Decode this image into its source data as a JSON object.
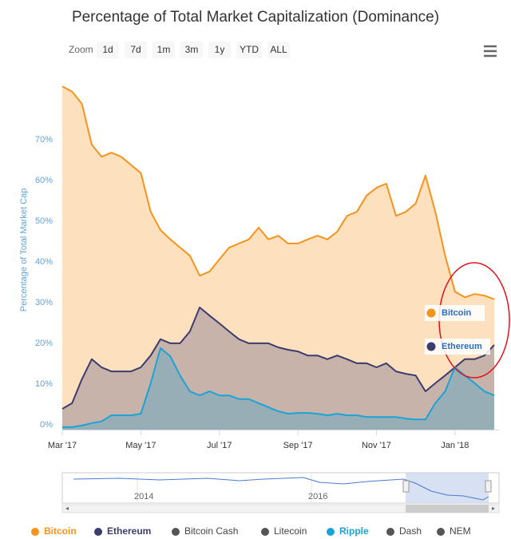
{
  "chart_data": {
    "type": "area",
    "title": "Percentage of Total Market Capitalization (Dominance)",
    "zoom_label": "Zoom",
    "zoom_buttons": [
      "1d",
      "7d",
      "1m",
      "3m",
      "1y",
      "YTD",
      "ALL"
    ],
    "y_label": "Percentage of Total Market Cap",
    "categories": [
      "Mar '17",
      null,
      null,
      null,
      null,
      null,
      null,
      null,
      "May '17",
      null,
      null,
      null,
      null,
      null,
      null,
      null,
      "Jul '17",
      null,
      null,
      null,
      null,
      null,
      null,
      null,
      "Sep '17",
      null,
      null,
      null,
      null,
      null,
      null,
      null,
      "Nov '17",
      null,
      null,
      null,
      null,
      null,
      null,
      null,
      "Jan '18",
      null,
      null,
      null,
      null
    ],
    "ylim": [
      0,
      85
    ],
    "yticks": [
      {
        "value": 0,
        "label": "0%"
      },
      {
        "value": 10,
        "label": "10%"
      },
      {
        "value": 20,
        "label": "20%"
      },
      {
        "value": 30,
        "label": "30%"
      },
      {
        "value": 40,
        "label": "40%"
      },
      {
        "value": 50,
        "label": "50%"
      },
      {
        "value": 60,
        "label": "60%"
      },
      {
        "value": 70,
        "label": "70%"
      }
    ],
    "grid": false,
    "series": [
      {
        "name": "Bitcoin",
        "color": "#f7931a",
        "visible": true,
        "values": [
          84.3,
          83,
          80,
          70,
          67,
          68,
          67,
          65,
          63,
          53.5,
          49,
          46.7,
          44.7,
          42.7,
          37.8,
          38.8,
          41.8,
          44.7,
          45.7,
          46.7,
          49.6,
          46.7,
          47.6,
          45.7,
          45.7,
          46.7,
          47.6,
          46.7,
          48.6,
          52.5,
          53.5,
          57.5,
          59.4,
          60.4,
          52.5,
          53.5,
          55.5,
          62.4,
          53.5,
          42.7,
          33.9,
          32.5,
          33.3,
          32.9,
          32
        ]
      },
      {
        "name": "Ethereum",
        "color": "#3c3c6e",
        "visible": true,
        "values": [
          5.1,
          6.5,
          12.4,
          17.3,
          15.3,
          14.3,
          14.3,
          14.3,
          15.3,
          18.2,
          22.2,
          21.2,
          21.2,
          24.1,
          30,
          28,
          26.1,
          24.1,
          22.2,
          21.2,
          21.2,
          21.2,
          20.2,
          19.6,
          19.2,
          18.2,
          18.2,
          17.3,
          18.2,
          17.3,
          16.3,
          16.3,
          15.3,
          16.3,
          14.3,
          13.7,
          13.3,
          9.4,
          11.4,
          13.3,
          15.3,
          17.3,
          17.3,
          18.2,
          20.8
        ]
      },
      {
        "name": "Bitcoin Cash",
        "color": "#555555",
        "visible": false
      },
      {
        "name": "Litecoin",
        "color": "#555555",
        "visible": false
      },
      {
        "name": "Ripple",
        "color": "#1ba3d6",
        "visible": true,
        "values": [
          0.6,
          0.6,
          1,
          1.6,
          2,
          3.5,
          3.5,
          3.5,
          3.9,
          11.4,
          20,
          18,
          13.3,
          9.4,
          8.4,
          9.4,
          8.4,
          8.4,
          7.5,
          7.5,
          6.5,
          5.5,
          4.5,
          3.9,
          4.1,
          4.1,
          3.9,
          3.5,
          3.9,
          3.5,
          3.5,
          3.1,
          3.1,
          3.1,
          3.1,
          2.7,
          2.5,
          2.5,
          6.5,
          9.4,
          15.3,
          13.3,
          11.4,
          9.4,
          8.4
        ]
      },
      {
        "name": "Dash",
        "color": "#555555",
        "visible": false
      },
      {
        "name": "NEM",
        "color": "#555555",
        "visible": false
      }
    ],
    "annotations": [
      "Bitcoin",
      "Ethereum"
    ],
    "navigator_labels": [
      "2014",
      "2016"
    ]
  }
}
